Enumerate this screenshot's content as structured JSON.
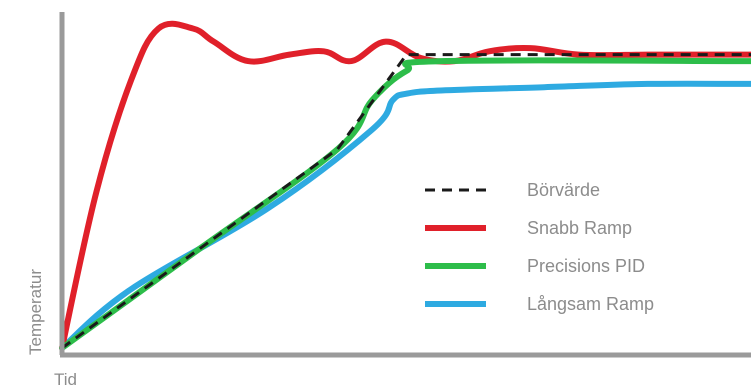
{
  "chart_data": {
    "type": "line",
    "title": "",
    "xlabel": "Tid",
    "ylabel": "Temperatur",
    "grid": false,
    "legend_position": "center-right",
    "xlim": [
      0,
      100
    ],
    "ylim": [
      0,
      100
    ],
    "series": [
      {
        "name": "Börvärde",
        "color": "#1a1a1a",
        "style": "dashed",
        "x": [
          0,
          20,
          40,
          50,
          100
        ],
        "y": [
          0,
          30.5,
          61,
          90,
          90
        ]
      },
      {
        "name": "Snabb Ramp",
        "color": "#e0202a",
        "style": "solid",
        "x": [
          0,
          5,
          10,
          14,
          19,
          22,
          27,
          33,
          38,
          42,
          47,
          52,
          57,
          62,
          68,
          75,
          85,
          92,
          100
        ],
        "y": [
          0,
          48,
          82,
          98,
          98,
          94,
          88,
          90,
          91,
          88,
          94,
          89,
          88,
          91,
          92,
          90,
          90,
          90,
          90
        ]
      },
      {
        "name": "Precisions PID",
        "color": "#2dbd4a",
        "style": "solid",
        "x": [
          0,
          20,
          40,
          45,
          50,
          55,
          100
        ],
        "y": [
          0,
          30.5,
          61,
          76,
          85,
          88,
          88
        ]
      },
      {
        "name": "Långsam Ramp",
        "color": "#2eaae1",
        "style": "solid",
        "x": [
          0,
          10,
          30,
          45,
          48,
          50,
          55,
          70,
          85,
          100
        ],
        "y": [
          0,
          18,
          43,
          67,
          76,
          78,
          79,
          80,
          81,
          81
        ]
      }
    ]
  }
}
